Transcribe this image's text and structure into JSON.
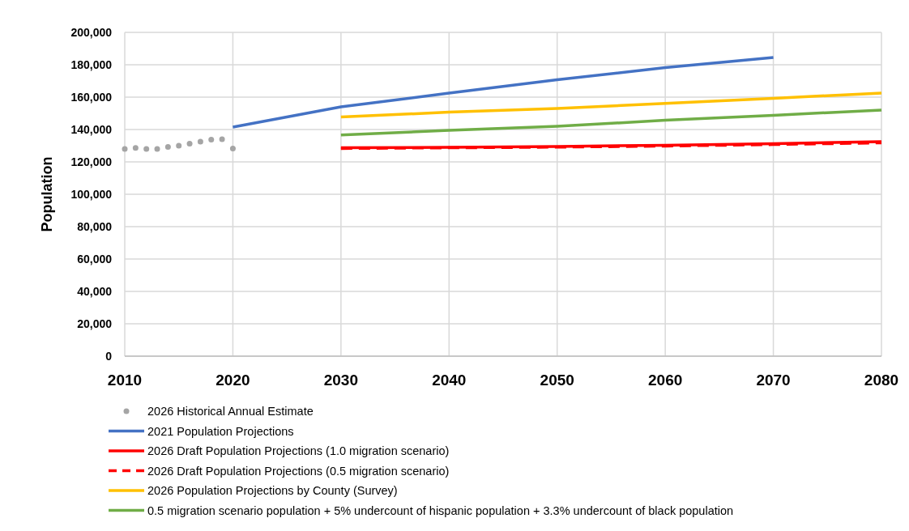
{
  "chart_data": {
    "type": "line",
    "ylabel": "Population",
    "xlim": [
      2010,
      2080
    ],
    "xticks": [
      2010,
      2020,
      2030,
      2040,
      2050,
      2060,
      2070,
      2080
    ],
    "ylim": [
      0,
      200000
    ],
    "yticks": [
      {
        "value": 0,
        "label": "0"
      },
      {
        "value": 20000,
        "label": "20,000"
      },
      {
        "value": 40000,
        "label": "40,000"
      },
      {
        "value": 60000,
        "label": "60,000"
      },
      {
        "value": 80000,
        "label": "80,000"
      },
      {
        "value": 100000,
        "label": "100,000"
      },
      {
        "value": 120000,
        "label": "120,000"
      },
      {
        "value": 140000,
        "label": "140,000"
      },
      {
        "value": 160000,
        "label": "160,000"
      },
      {
        "value": 180000,
        "label": "180,000"
      },
      {
        "value": 200000,
        "label": "200,000"
      }
    ],
    "grid": true,
    "legend": "bottom",
    "series": [
      {
        "name": "2026 Historical Annual Estimate",
        "type": "scatter",
        "marker": "circle",
        "color": "#a5a5a5",
        "x": [
          2010,
          2011,
          2012,
          2013,
          2014,
          2015,
          2016,
          2017,
          2018,
          2019,
          2020
        ],
        "values": [
          128000,
          128600,
          128000,
          128000,
          129200,
          130000,
          131300,
          132500,
          133700,
          134000,
          128300
        ]
      },
      {
        "name": "2021 Population Projections",
        "type": "line",
        "color": "#4472c4",
        "x": [
          2020,
          2030,
          2040,
          2050,
          2060,
          2070
        ],
        "values": [
          141500,
          154000,
          162500,
          170700,
          178200,
          184500
        ]
      },
      {
        "name": "2026 Draft Population Projections (1.0 migration scenario)",
        "type": "line",
        "color": "#ff0000",
        "x": [
          2030,
          2040,
          2050,
          2060,
          2070,
          2080
        ],
        "values": [
          128700,
          129000,
          129500,
          130300,
          131300,
          132500
        ]
      },
      {
        "name": "2026 Draft Population Projections (0.5 migration scenario)",
        "type": "line",
        "line_style": "dashed",
        "color": "#ff0000",
        "x": [
          2030,
          2040,
          2050,
          2060,
          2070,
          2080
        ],
        "values": [
          128300,
          128700,
          129100,
          129800,
          130700,
          131800
        ]
      },
      {
        "name": "2026 Population Projections by County (Survey)",
        "type": "line",
        "color": "#ffc000",
        "x": [
          2030,
          2040,
          2050,
          2060,
          2070,
          2080
        ],
        "values": [
          147700,
          150700,
          153000,
          156100,
          159300,
          162500
        ]
      },
      {
        "name": "0.5 migration scenario population + 5% undercount of hispanic population + 3.3% undercount of black population",
        "type": "line",
        "color": "#70ad47",
        "x": [
          2030,
          2040,
          2050,
          2060,
          2070,
          2080
        ],
        "values": [
          136600,
          139500,
          142000,
          145700,
          148800,
          152000
        ]
      }
    ]
  }
}
